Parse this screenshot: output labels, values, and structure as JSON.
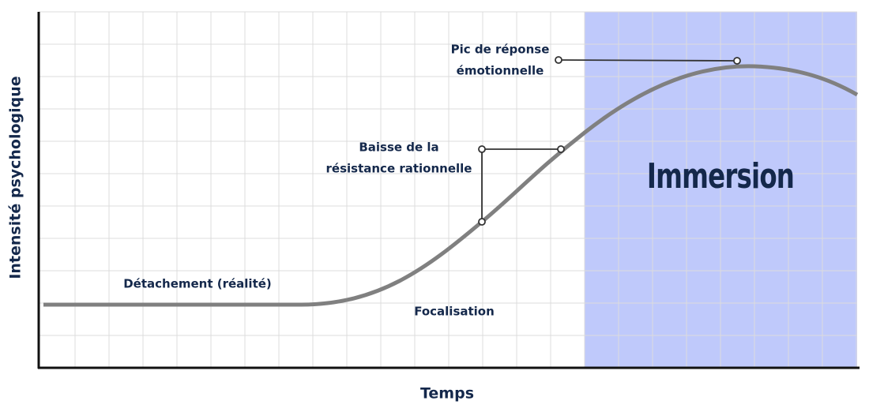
{
  "axes": {
    "y_label": "Intensité psychologique",
    "x_label": "Temps"
  },
  "zone": {
    "label": "Immersion"
  },
  "annotations": {
    "peak": [
      "Pic de réponse",
      "émotionnelle"
    ],
    "resistance": [
      "Baisse de la",
      "résistance rationnelle"
    ]
  },
  "phases": {
    "detachment": "Détachement (réalité)",
    "focus": "Focalisation"
  }
}
